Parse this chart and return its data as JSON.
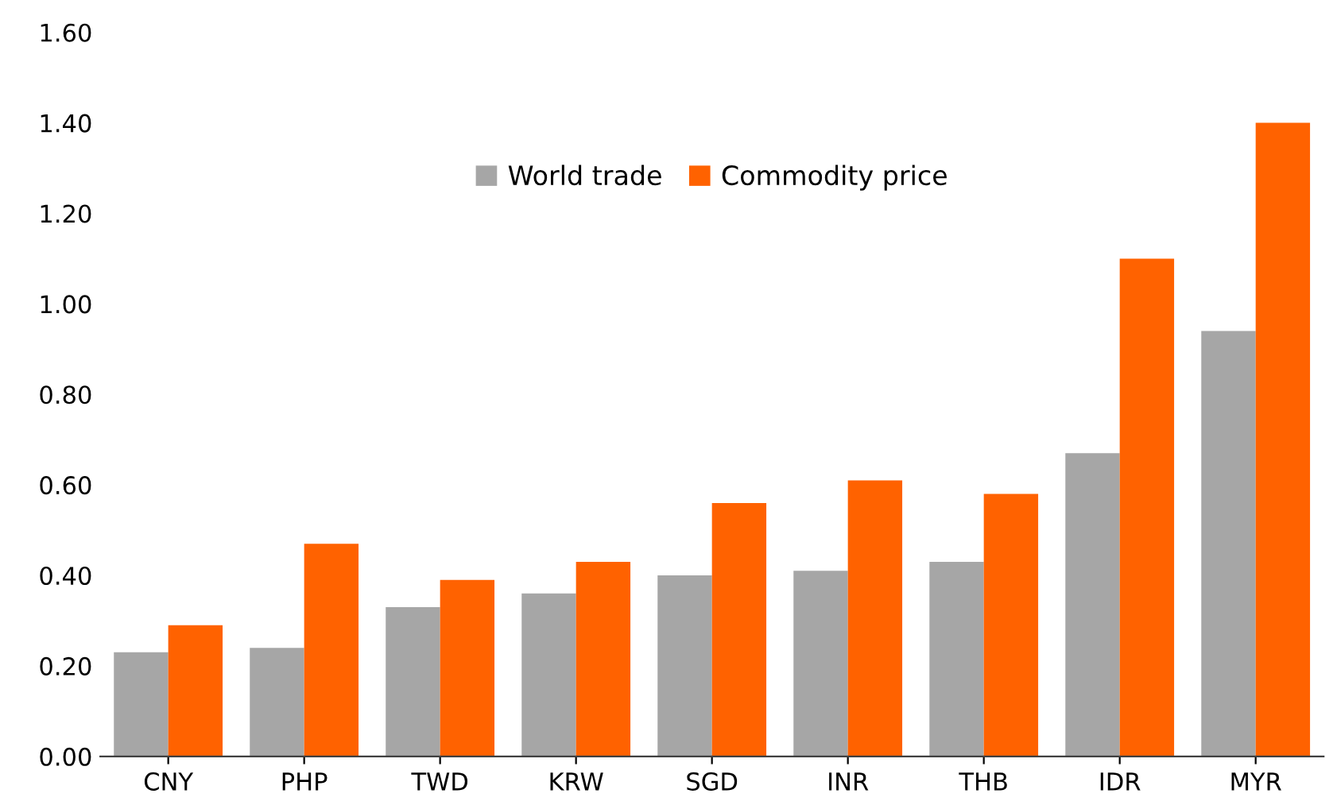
{
  "chart_data": {
    "type": "bar",
    "categories": [
      "CNY",
      "PHP",
      "TWD",
      "KRW",
      "SGD",
      "INR",
      "THB",
      "IDR",
      "MYR"
    ],
    "series": [
      {
        "name": "World trade",
        "color": "#a6a6a6",
        "values": [
          0.23,
          0.24,
          0.33,
          0.36,
          0.4,
          0.41,
          0.43,
          0.67,
          0.94
        ]
      },
      {
        "name": "Commodity price",
        "color": "#ff6200",
        "values": [
          0.29,
          0.47,
          0.39,
          0.43,
          0.56,
          0.61,
          0.58,
          1.1,
          1.4
        ]
      }
    ],
    "ylim": [
      0,
      1.6
    ],
    "yticks": [
      {
        "value": 0,
        "label": "0.00"
      },
      {
        "value": 0.2,
        "label": "0.20"
      },
      {
        "value": 0.4,
        "label": "0.40"
      },
      {
        "value": 0.6,
        "label": "0.60"
      },
      {
        "value": 0.8,
        "label": "0.80"
      },
      {
        "value": 1.0,
        "label": "1.00"
      },
      {
        "value": 1.2,
        "label": "1.20"
      },
      {
        "value": 1.4,
        "label": "1.40"
      },
      {
        "value": 1.6,
        "label": "1.60"
      }
    ],
    "grid": false,
    "legend": "top"
  }
}
